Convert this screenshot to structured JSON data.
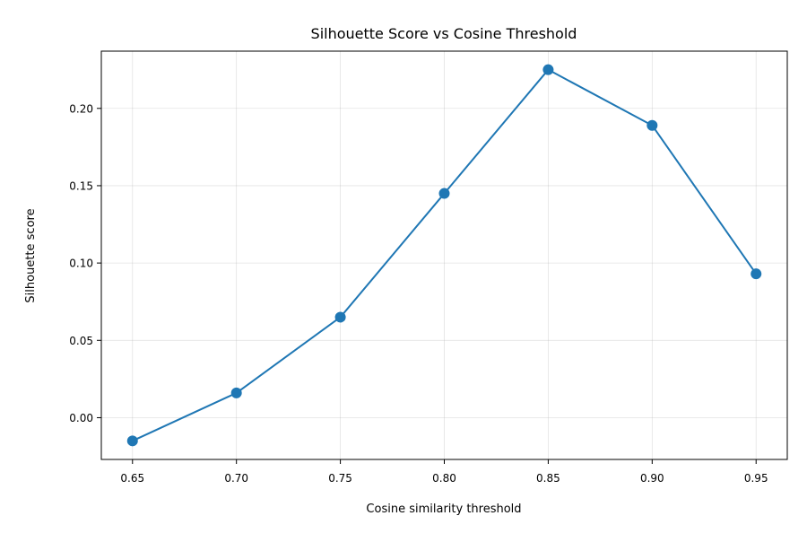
{
  "chart_data": {
    "type": "line",
    "title": "Silhouette Score vs Cosine Threshold",
    "xlabel": "Cosine similarity threshold",
    "ylabel": "Silhouette score",
    "x": [
      0.65,
      0.7,
      0.75,
      0.8,
      0.85,
      0.9,
      0.95
    ],
    "series": [
      {
        "values": [
          -0.015,
          0.016,
          0.065,
          0.145,
          0.225,
          0.189,
          0.093
        ],
        "color": "#1f77b4",
        "marker": "circle"
      }
    ],
    "xlim": [
      0.635,
      0.965
    ],
    "ylim": [
      -0.027,
      0.237
    ],
    "xticks": [
      0.65,
      0.7,
      0.75,
      0.8,
      0.85,
      0.9,
      0.95
    ],
    "xtick_labels": [
      "0.65",
      "0.70",
      "0.75",
      "0.80",
      "0.85",
      "0.90",
      "0.95"
    ],
    "yticks": [
      0.0,
      0.05,
      0.1,
      0.15,
      0.2
    ],
    "ytick_labels": [
      "0.00",
      "0.05",
      "0.10",
      "0.15",
      "0.20"
    ],
    "grid": true,
    "legend": "none"
  }
}
